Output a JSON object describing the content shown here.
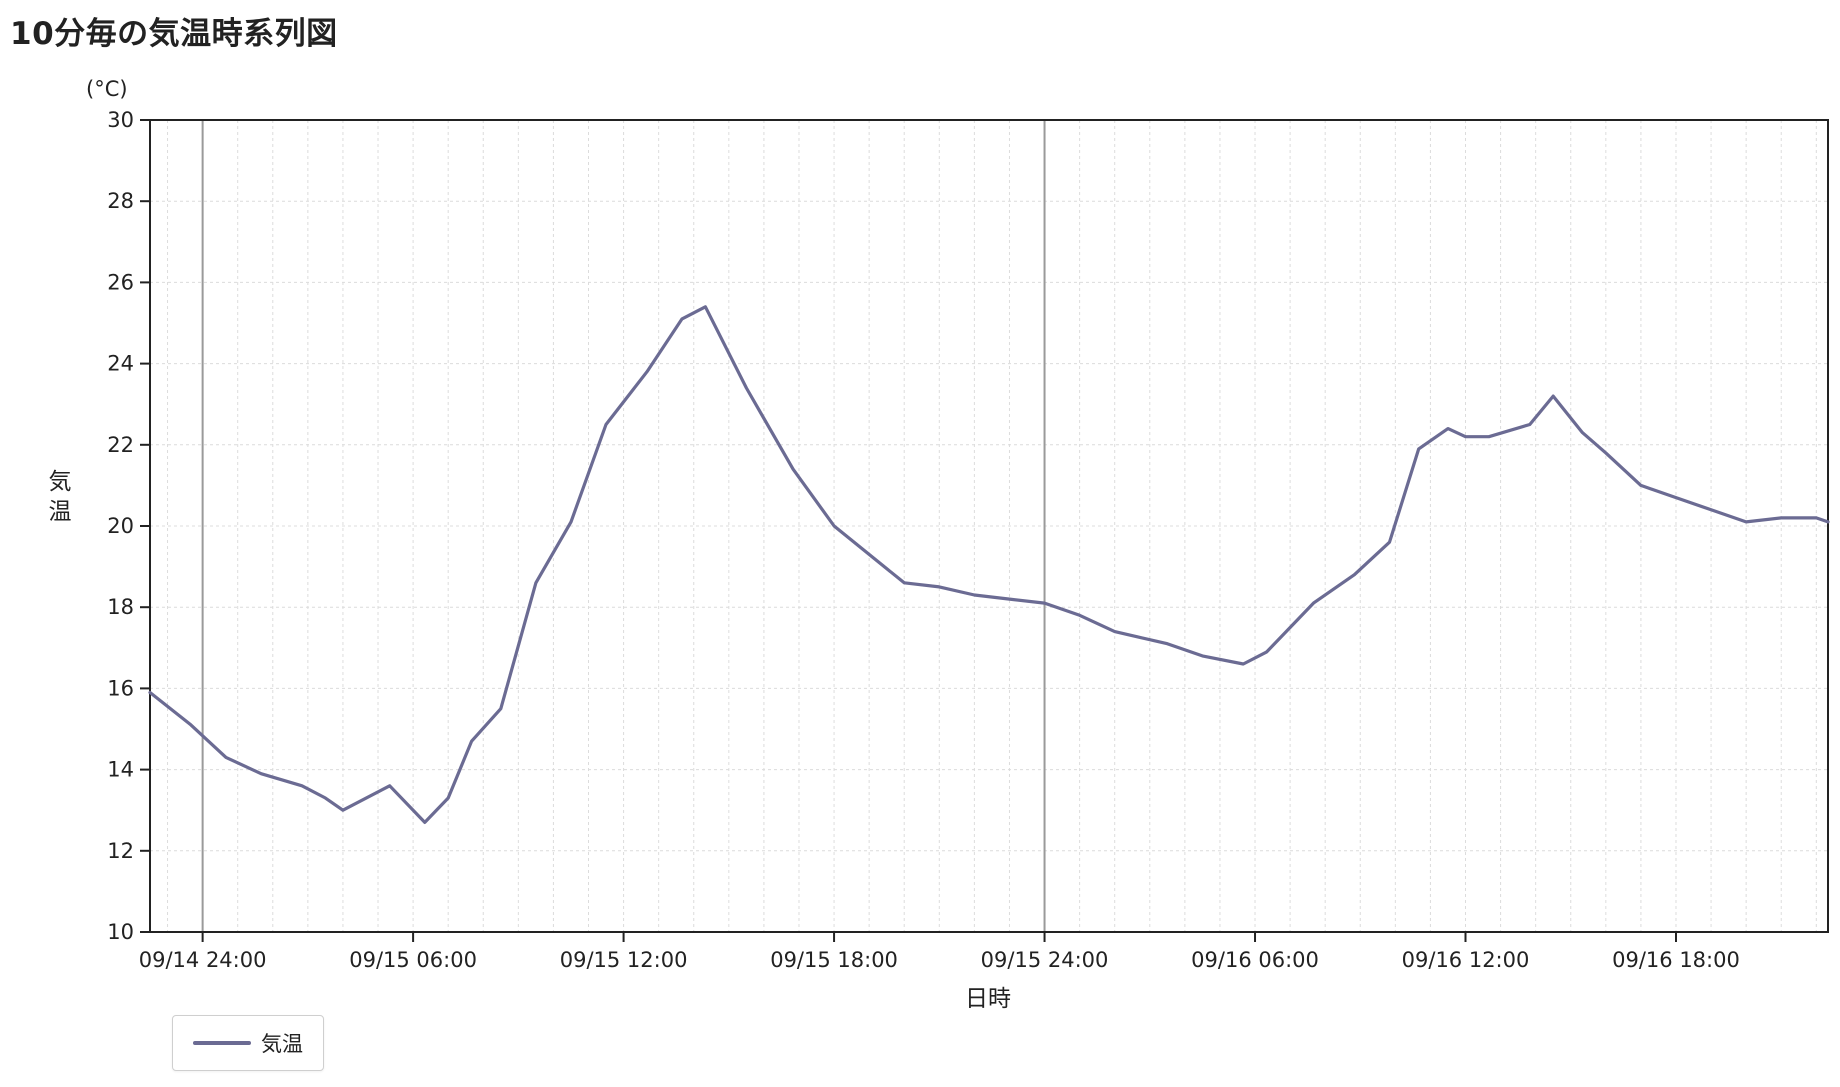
{
  "page": {
    "title": "10分毎の気温時系列図"
  },
  "colors": {
    "series": "#6b6b93",
    "grid": "#dcdcdc",
    "axis": "#222222",
    "day_line": "#9a9a9a"
  },
  "chart_data": {
    "type": "line",
    "title": "10分毎の気温時系列図",
    "ylabel": "気温",
    "yunit": "(°C)",
    "xlabel": "日時",
    "ylim": [
      10,
      30
    ],
    "yticks": [
      10,
      12,
      14,
      16,
      18,
      20,
      22,
      24,
      26,
      28,
      30
    ],
    "xlim": [
      "09/14 22:30",
      "09/16 22:20"
    ],
    "xticks": [
      "09/14 24:00",
      "09/15 06:00",
      "09/15 12:00",
      "09/15 18:00",
      "09/15 24:00",
      "09/16 06:00",
      "09/16 12:00",
      "09/16 18:00"
    ],
    "grid": true,
    "legend_position": "bottom-left",
    "series": [
      {
        "name": "気温",
        "x": [
          "09/14 22:30",
          "09/14 23:40",
          "09/15 00:40",
          "09/15 01:40",
          "09/15 02:50",
          "09/15 03:30",
          "09/15 04:00",
          "09/15 05:20",
          "09/15 06:20",
          "09/15 07:00",
          "09/15 07:40",
          "09/15 08:30",
          "09/15 09:30",
          "09/15 10:30",
          "09/15 11:30",
          "09/15 12:40",
          "09/15 13:40",
          "09/15 14:20",
          "09/15 15:30",
          "09/15 16:50",
          "09/15 18:00",
          "09/15 19:00",
          "09/15 20:00",
          "09/15 21:00",
          "09/15 22:00",
          "09/15 23:00",
          "09/16 00:00",
          "09/16 01:00",
          "09/16 02:00",
          "09/16 03:30",
          "09/16 04:30",
          "09/16 05:40",
          "09/16 06:20",
          "09/16 07:40",
          "09/16 08:50",
          "09/16 09:50",
          "09/16 10:40",
          "09/16 11:30",
          "09/16 12:00",
          "09/16 12:40",
          "09/16 13:50",
          "09/16 14:30",
          "09/16 15:20",
          "09/16 16:00",
          "09/16 17:00",
          "09/16 18:00",
          "09/16 19:00",
          "09/16 20:00",
          "09/16 21:00",
          "09/16 22:00",
          "09/16 22:20"
        ],
        "values": [
          15.9,
          15.1,
          14.3,
          13.9,
          13.6,
          13.3,
          13.0,
          13.6,
          12.7,
          13.3,
          14.7,
          15.5,
          18.6,
          20.1,
          22.5,
          23.8,
          25.1,
          25.4,
          23.4,
          21.4,
          20.0,
          19.3,
          18.6,
          18.5,
          18.3,
          18.2,
          18.1,
          17.8,
          17.4,
          17.1,
          16.8,
          16.6,
          16.9,
          18.1,
          18.8,
          19.6,
          21.9,
          22.4,
          22.2,
          22.2,
          22.5,
          23.2,
          22.3,
          21.8,
          21.0,
          20.7,
          20.4,
          20.1,
          20.2,
          20.2,
          20.1
        ]
      }
    ]
  }
}
